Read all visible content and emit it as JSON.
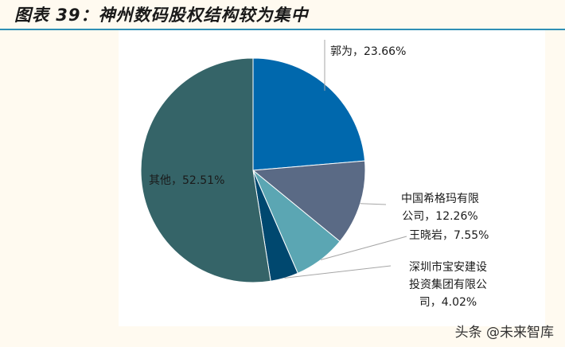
{
  "title": "图表 39：神州数码股权结构较为集中",
  "watermark": "头条 @未来智库",
  "chart_data": {
    "type": "pie",
    "title": "神州数码股权结构较为集中",
    "categories": [
      "郭为",
      "中国希格玛有限公司",
      "王晓岩",
      "深圳市宝安建设投资集团有限公司",
      "其他"
    ],
    "values": [
      23.66,
      12.26,
      7.55,
      4.02,
      52.51
    ],
    "colors": [
      "#0068ad",
      "#5a6a85",
      "#5ba6b3",
      "#00486f",
      "#356468"
    ],
    "start_angle_deg": 0,
    "direction": "clockwise",
    "legend": "none"
  },
  "labels": {
    "guowei": "郭为，23.66%",
    "sigma_l1": "中国希格玛有限",
    "sigma_l2": "公司，12.26%",
    "wang": "王晓岩，7.55%",
    "baoan_l1": "深圳市宝安建设",
    "baoan_l2": "投资集团有限公",
    "baoan_l3": "司，4.02%",
    "other": "其他，52.51%"
  }
}
